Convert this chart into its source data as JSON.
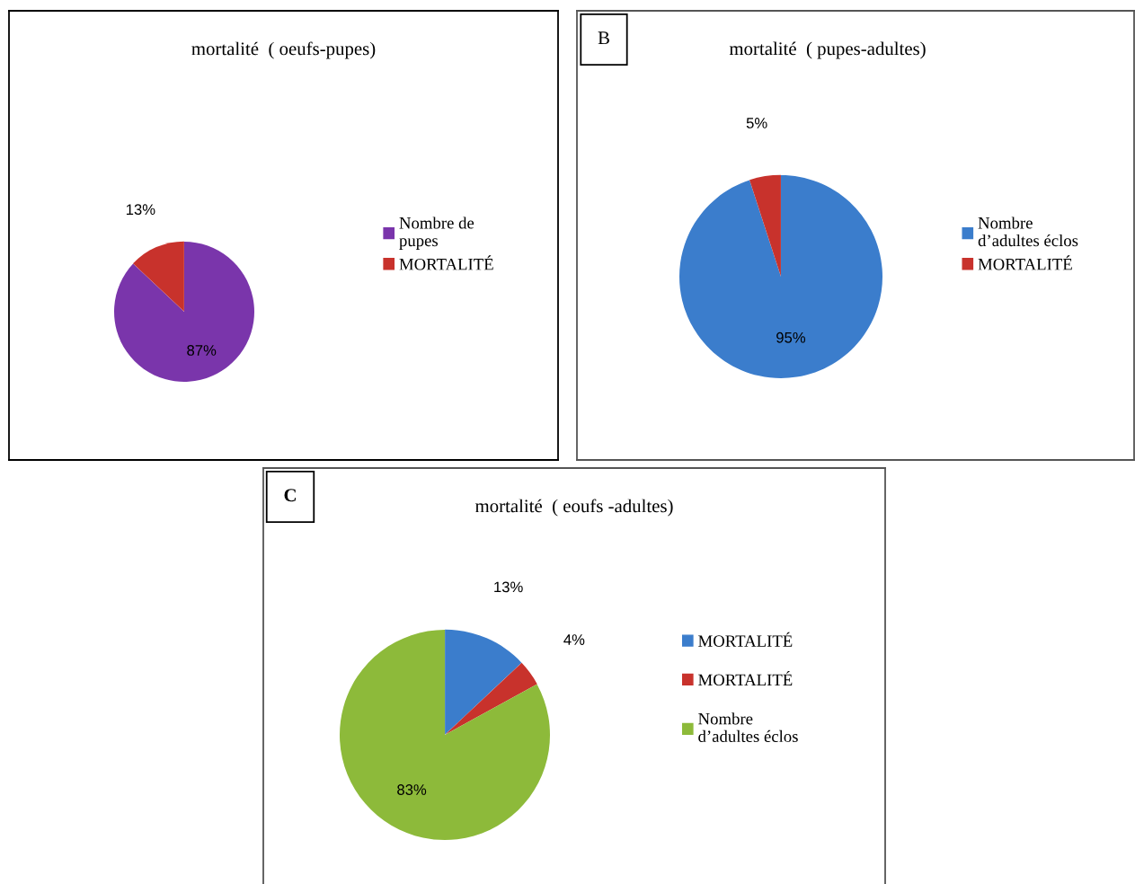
{
  "chart_data": [
    {
      "type": "pie",
      "title": "mortalité  ( oeufs-pupes)",
      "categories": [
        "Nombre de\npupes",
        "MORTALITÉ"
      ],
      "values": [
        87,
        13
      ],
      "colors": [
        "#7a35ab",
        "#c8322c"
      ],
      "value_labels": [
        "87%",
        "13%"
      ],
      "legend": "right"
    },
    {
      "type": "pie",
      "title": "mortalité  ( pupes-adultes)",
      "annotations": [
        "B"
      ],
      "categories": [
        "Nombre\nd’adultes éclos",
        "MORTALITÉ"
      ],
      "values": [
        95,
        5
      ],
      "colors": [
        "#3b7dcc",
        "#c8322c"
      ],
      "value_labels": [
        "95%",
        "5%"
      ],
      "legend": "right"
    },
    {
      "type": "pie",
      "title": "mortalité  ( eoufs -adultes)",
      "annotations": [
        "C"
      ],
      "categories": [
        "MORTALITÉ",
        "MORTALITÉ",
        "Nombre\nd’adultes éclos"
      ],
      "values": [
        13,
        4,
        83
      ],
      "colors": [
        "#3b7dcc",
        "#c8322c",
        "#8dba3a"
      ],
      "value_labels": [
        "13%",
        "4%",
        "83%"
      ],
      "legend": "right"
    }
  ]
}
